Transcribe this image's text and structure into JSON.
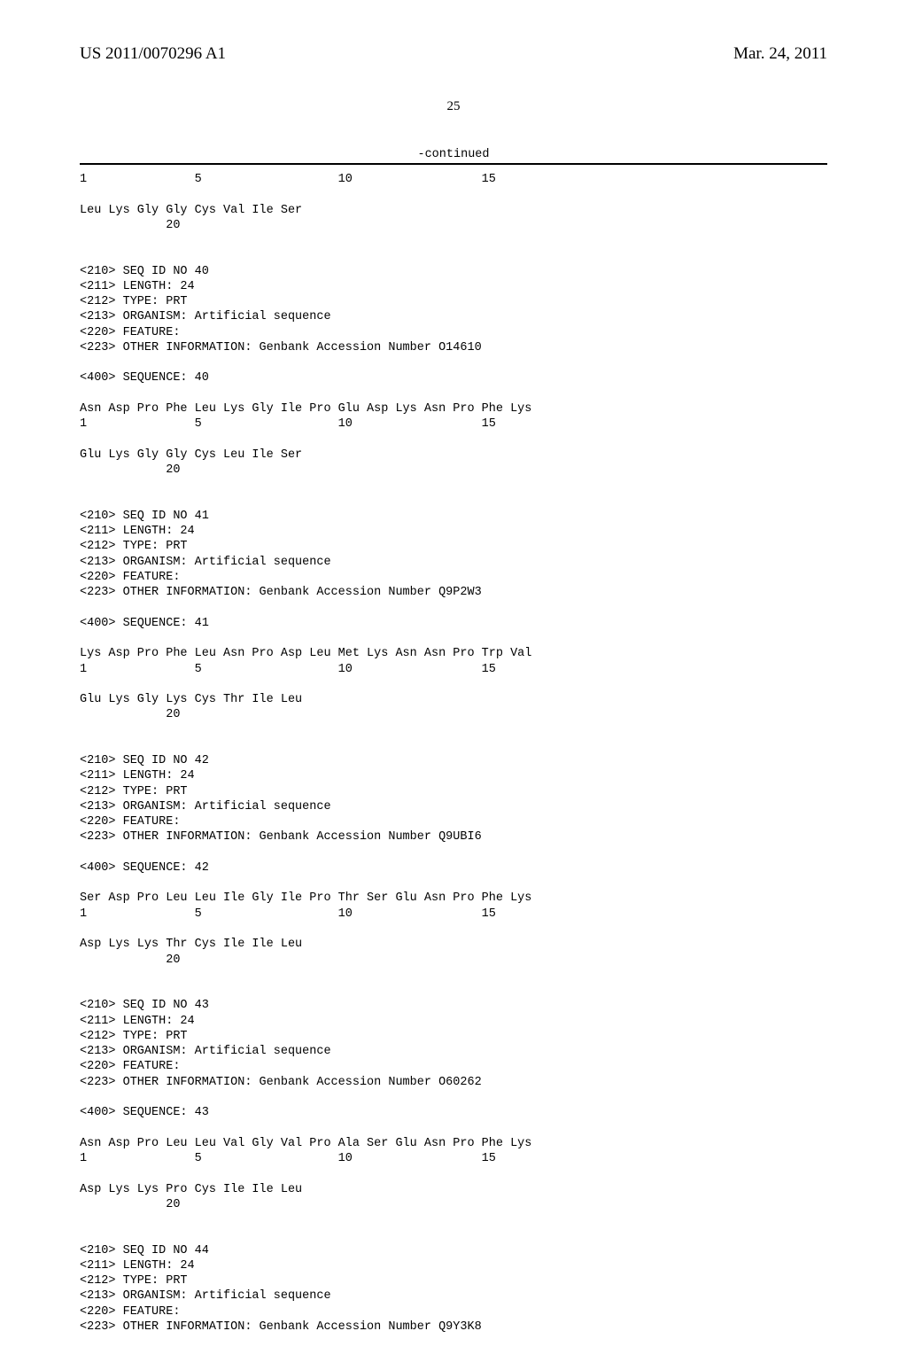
{
  "header": {
    "pub_number": "US 2011/0070296 A1",
    "pub_date": "Mar. 24, 2011"
  },
  "page_number": "25",
  "continued_label": "-continued",
  "seq_body": "1               5                   10                  15\n\nLeu Lys Gly Gly Cys Val Ile Ser\n            20\n\n\n<210> SEQ ID NO 40\n<211> LENGTH: 24\n<212> TYPE: PRT\n<213> ORGANISM: Artificial sequence\n<220> FEATURE:\n<223> OTHER INFORMATION: Genbank Accession Number O14610\n\n<400> SEQUENCE: 40\n\nAsn Asp Pro Phe Leu Lys Gly Ile Pro Glu Asp Lys Asn Pro Phe Lys\n1               5                   10                  15\n\nGlu Lys Gly Gly Cys Leu Ile Ser\n            20\n\n\n<210> SEQ ID NO 41\n<211> LENGTH: 24\n<212> TYPE: PRT\n<213> ORGANISM: Artificial sequence\n<220> FEATURE:\n<223> OTHER INFORMATION: Genbank Accession Number Q9P2W3\n\n<400> SEQUENCE: 41\n\nLys Asp Pro Phe Leu Asn Pro Asp Leu Met Lys Asn Asn Pro Trp Val\n1               5                   10                  15\n\nGlu Lys Gly Lys Cys Thr Ile Leu\n            20\n\n\n<210> SEQ ID NO 42\n<211> LENGTH: 24\n<212> TYPE: PRT\n<213> ORGANISM: Artificial sequence\n<220> FEATURE:\n<223> OTHER INFORMATION: Genbank Accession Number Q9UBI6\n\n<400> SEQUENCE: 42\n\nSer Asp Pro Leu Leu Ile Gly Ile Pro Thr Ser Glu Asn Pro Phe Lys\n1               5                   10                  15\n\nAsp Lys Lys Thr Cys Ile Ile Leu\n            20\n\n\n<210> SEQ ID NO 43\n<211> LENGTH: 24\n<212> TYPE: PRT\n<213> ORGANISM: Artificial sequence\n<220> FEATURE:\n<223> OTHER INFORMATION: Genbank Accession Number O60262\n\n<400> SEQUENCE: 43\n\nAsn Asp Pro Leu Leu Val Gly Val Pro Ala Ser Glu Asn Pro Phe Lys\n1               5                   10                  15\n\nAsp Lys Lys Pro Cys Ile Ile Leu\n            20\n\n\n<210> SEQ ID NO 44\n<211> LENGTH: 24\n<212> TYPE: PRT\n<213> ORGANISM: Artificial sequence\n<220> FEATURE:\n<223> OTHER INFORMATION: Genbank Accession Number Q9Y3K8"
}
